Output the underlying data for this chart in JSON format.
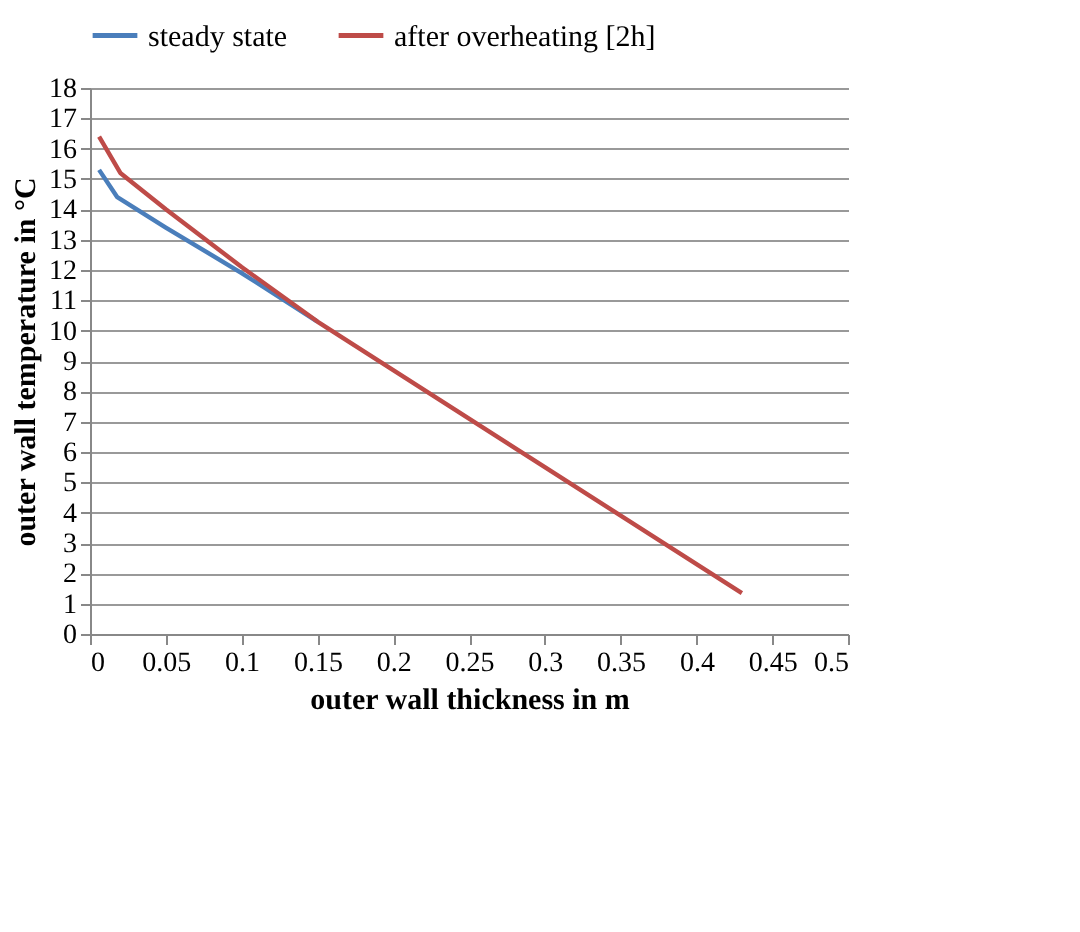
{
  "chart_data": {
    "type": "line",
    "xlabel": "outer wall thickness in m",
    "ylabel": "outer wall temperature in °C",
    "series": [
      {
        "name": "steady state",
        "color": "#4a7ebb",
        "x": [
          0.006,
          0.018,
          0.05,
          0.1,
          0.15
        ],
        "values": [
          15.3,
          14.4,
          13.4,
          11.9,
          10.3
        ]
      },
      {
        "name": "after overheating [2h]",
        "color": "#be4b48",
        "x": [
          0.006,
          0.02,
          0.05,
          0.1,
          0.15,
          0.2,
          0.3,
          0.43
        ],
        "values": [
          16.4,
          15.2,
          14.0,
          12.1,
          10.3,
          8.7,
          5.5,
          1.35
        ]
      }
    ],
    "xlim": [
      0,
      0.5
    ],
    "xticks": [
      0,
      0.05,
      0.1,
      0.15,
      0.2,
      0.25,
      0.3,
      0.35,
      0.4,
      0.45,
      0.5
    ],
    "ylim": [
      0,
      18
    ],
    "yticks": [
      0,
      1,
      2,
      3,
      4,
      5,
      6,
      7,
      8,
      9,
      10,
      11,
      12,
      13,
      14,
      15,
      16,
      17,
      18
    ],
    "grid": "y",
    "legend": "top"
  }
}
